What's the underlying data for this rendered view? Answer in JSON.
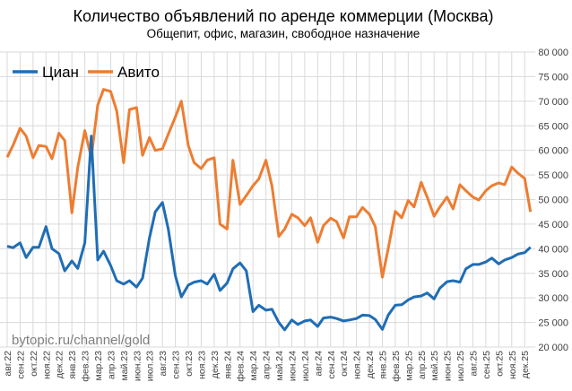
{
  "chart_data": {
    "type": "line",
    "title": "Количество объявлений по аренде коммерции (Москва)",
    "subtitle": "Общепит, офис, магазин, свободное назначение",
    "watermark": "bytopic.ru/channel/gold",
    "ylim": [
      20000,
      80000
    ],
    "y_ticks": [
      "20 000",
      "25 000",
      "30 000",
      "35 000",
      "40 000",
      "45 000",
      "50 000",
      "55 000",
      "60 000",
      "65 000",
      "70 000",
      "75 000",
      "80 000"
    ],
    "y_axis_side": "right",
    "grid": true,
    "legend": "top-left",
    "x_tick_labels": [
      "авг.22",
      "сен.22",
      "окт.22",
      "ноя.22",
      "дек.22",
      "янв.23",
      "фев.23",
      "мар.23",
      "апр.23",
      "май.23",
      "июн.23",
      "июл.23",
      "авг.23",
      "сен.23",
      "окт.23",
      "ноя.23",
      "дек.23",
      "янв.24",
      "фев.24",
      "мар.24",
      "апр.24",
      "май.24",
      "июн.24",
      "июл.24",
      "авг.24",
      "сен.24",
      "окт.24",
      "ноя.24",
      "дек.24",
      "янв.25",
      "фев.25",
      "мар.25",
      "апр.25",
      "май.25",
      "июн.25",
      "июл.25",
      "авг.25",
      "сен.25",
      "окт.25",
      "ноя.25",
      "дек.25"
    ],
    "x": [
      "2022-08-01",
      "2022-08-15",
      "2022-09-01",
      "2022-09-15",
      "2022-10-01",
      "2022-10-15",
      "2022-11-01",
      "2022-11-15",
      "2022-12-01",
      "2022-12-15",
      "2023-01-01",
      "2023-01-15",
      "2023-02-01",
      "2023-02-15",
      "2023-03-01",
      "2023-03-15",
      "2023-04-01",
      "2023-04-15",
      "2023-05-01",
      "2023-05-15",
      "2023-06-01",
      "2023-06-15",
      "2023-07-01",
      "2023-07-15",
      "2023-08-01",
      "2023-08-15",
      "2023-09-01",
      "2023-09-15",
      "2023-10-01",
      "2023-10-15",
      "2023-11-01",
      "2023-11-15",
      "2023-12-01",
      "2023-12-15",
      "2024-01-01",
      "2024-01-15",
      "2024-02-01",
      "2024-02-15",
      "2024-03-01",
      "2024-03-15",
      "2024-04-01",
      "2024-04-15",
      "2024-05-01",
      "2024-05-15",
      "2024-06-01",
      "2024-06-15",
      "2024-07-01",
      "2024-07-15",
      "2024-08-01",
      "2024-08-15",
      "2024-09-01",
      "2024-09-15",
      "2024-10-01",
      "2024-10-15",
      "2024-11-01",
      "2024-11-15",
      "2024-12-01",
      "2024-12-15",
      "2025-01-01",
      "2025-01-15",
      "2025-02-01",
      "2025-02-15",
      "2025-03-01",
      "2025-03-15",
      "2025-04-01",
      "2025-04-15",
      "2025-05-01",
      "2025-05-15",
      "2025-06-01",
      "2025-06-15",
      "2025-07-01",
      "2025-07-15",
      "2025-08-01",
      "2025-08-15",
      "2025-09-01",
      "2025-09-15",
      "2025-10-01",
      "2025-10-15",
      "2025-11-01",
      "2025-11-15",
      "2025-12-01",
      "2025-12-15"
    ],
    "series": [
      {
        "name": "Циан",
        "color": "#1F6DB5",
        "values": [
          40500,
          40200,
          41200,
          38200,
          40300,
          40300,
          44500,
          40000,
          39000,
          35500,
          37500,
          36000,
          41200,
          62900,
          37700,
          39500,
          36600,
          33500,
          32800,
          33500,
          32200,
          34000,
          42200,
          47500,
          49400,
          44000,
          34500,
          30200,
          32600,
          33200,
          33500,
          32800,
          34800,
          31500,
          33000,
          35900,
          37100,
          35500,
          27200,
          28500,
          27500,
          27700,
          25000,
          23500,
          25500,
          24600,
          25300,
          25500,
          24200,
          25900,
          26100,
          25800,
          25300,
          25500,
          25800,
          26500,
          26400,
          25600,
          23600,
          26500,
          28500,
          28600,
          29600,
          30200,
          30400,
          31000,
          29800,
          32000,
          33300,
          33500,
          33200,
          35900,
          36800,
          36800,
          37300,
          38100,
          36900,
          37700,
          38200,
          38900,
          39200,
          40300
        ]
      },
      {
        "name": "Авито",
        "color": "#ED7D31",
        "values": [
          58600,
          61000,
          64500,
          62900,
          58500,
          61000,
          60800,
          58300,
          63500,
          62000,
          47300,
          56500,
          64000,
          58500,
          69200,
          72400,
          72000,
          68000,
          57500,
          68300,
          68700,
          59000,
          62600,
          60000,
          60300,
          63300,
          66800,
          70000,
          61000,
          57500,
          56300,
          58000,
          58500,
          45000,
          44000,
          58000,
          49000,
          50800,
          52800,
          54200,
          58000,
          52800,
          42500,
          44000,
          47000,
          46300,
          44700,
          46300,
          41300,
          44700,
          46200,
          45500,
          42200,
          46500,
          46500,
          48400,
          47000,
          44500,
          34200,
          40000,
          47600,
          46300,
          49800,
          48500,
          53500,
          50500,
          46600,
          48500,
          50500,
          48100,
          53000,
          51800,
          50500,
          49900,
          51800,
          52800,
          53400,
          53000,
          56600,
          55400,
          54300,
          47500
        ]
      }
    ]
  }
}
